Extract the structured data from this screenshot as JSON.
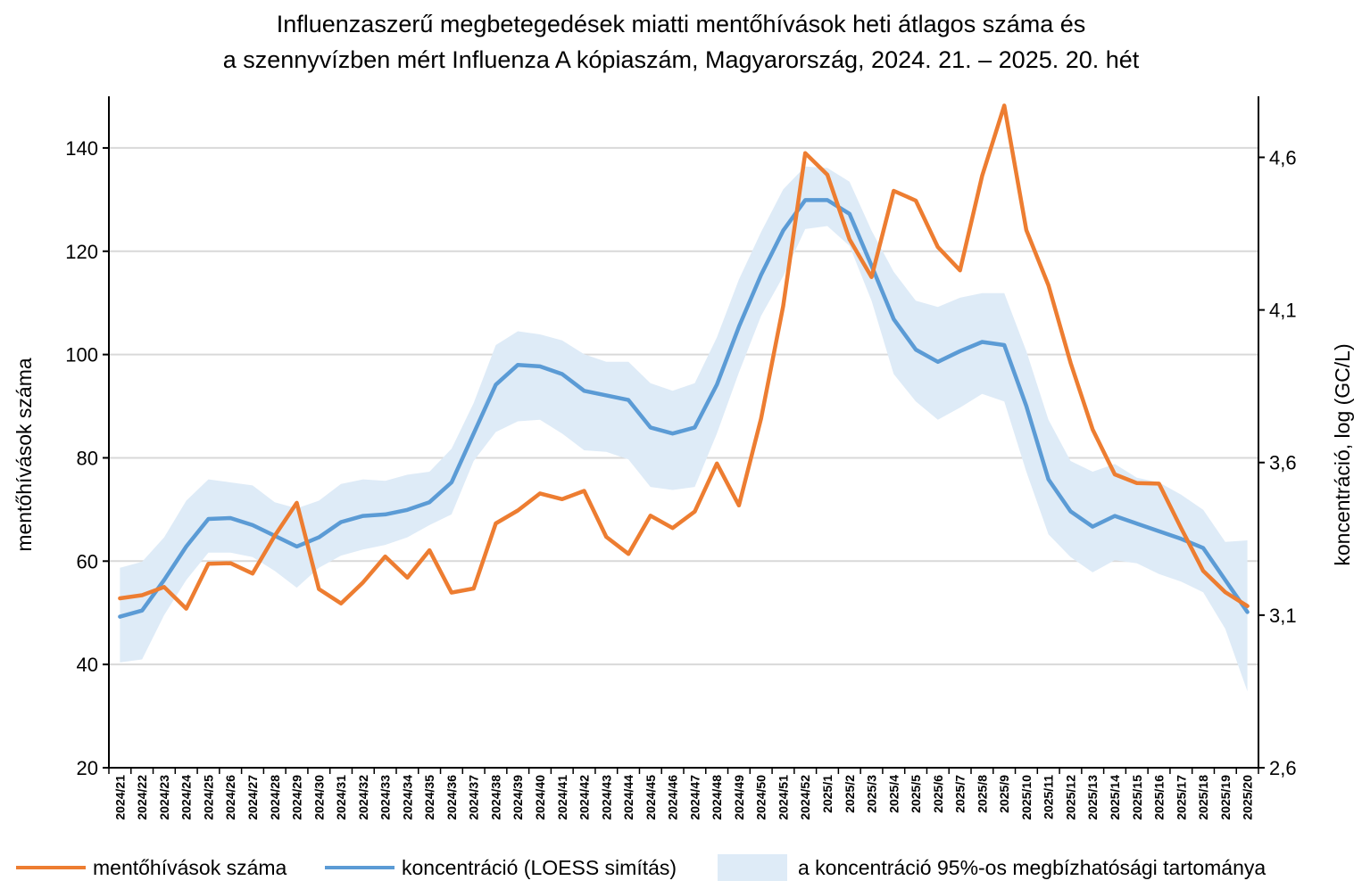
{
  "title": {
    "line1": "Influenzaszerű megbetegedések miatti mentőhívások heti átlagos száma és",
    "line2": "a szennyvízben mért Influenza A kópiaszám, Magyarország, 2024. 21. – 2025. 20. hét"
  },
  "colors": {
    "calls": "#ED7D31",
    "concentration": "#5B9BD5",
    "band": "#DEEBF7",
    "grid": "#D9D9D9",
    "axis": "#000000"
  },
  "chart_data": {
    "type": "line",
    "x": [
      "2024/21",
      "2024/22",
      "2024/23",
      "2024/24",
      "2024/25",
      "2024/26",
      "2024/27",
      "2024/28",
      "2024/29",
      "2024/30",
      "2024/31",
      "2024/32",
      "2024/33",
      "2024/34",
      "2024/35",
      "2024/36",
      "2024/37",
      "2024/38",
      "2024/39",
      "2024/40",
      "2024/41",
      "2024/42",
      "2024/43",
      "2024/44",
      "2024/45",
      "2024/46",
      "2024/47",
      "2024/48",
      "2024/49",
      "2024/50",
      "2024/51",
      "2024/52",
      "2025/1",
      "2025/2",
      "2025/3",
      "2025/4",
      "2025/5",
      "2025/6",
      "2025/7",
      "2025/8",
      "2025/9",
      "2025/10",
      "2025/11",
      "2025/12",
      "2025/13",
      "2025/14",
      "2025/15",
      "2025/16",
      "2025/17",
      "2025/18",
      "2025/19",
      "2025/20"
    ],
    "ylabel_left": "mentőhívások száma",
    "ylabel_right": "koncentráció, log (GC/L)",
    "ylim_left": [
      20,
      150
    ],
    "ylim_right": [
      2.6,
      4.8
    ],
    "yticks_left": [
      20,
      40,
      60,
      80,
      100,
      120,
      140
    ],
    "yticks_right": [
      "2,6",
      "3,1",
      "3,6",
      "4,1",
      "4,6"
    ],
    "grid": "horizontal",
    "legend_position": "bottom",
    "series": [
      {
        "name": "mentőhívások száma",
        "axis": "left",
        "color": "#ED7D31",
        "values": [
          52.8,
          53.4,
          55,
          50.8,
          59.5,
          59.6,
          57.6,
          64.9,
          71.3,
          54.6,
          51.8,
          55.9,
          60.9,
          56.8,
          62.1,
          53.9,
          54.7,
          67.3,
          69.8,
          73.1,
          72,
          73.6,
          64.7,
          61.4,
          68.8,
          66.4,
          69.6,
          78.9,
          70.8,
          87.6,
          109.4,
          139,
          134.8,
          122.3,
          115,
          131.7,
          129.8,
          120.8,
          116.3,
          134.6,
          148.2,
          124.1,
          113.4,
          98.4,
          85.5,
          76.8,
          75.1,
          75,
          66.4,
          58.1,
          54,
          51.3
        ]
      },
      {
        "name": "koncentráció (LOESS simítás)",
        "axis": "right",
        "color": "#5B9BD5",
        "values": [
          3.095,
          3.115,
          3.215,
          3.325,
          3.415,
          3.418,
          3.395,
          3.36,
          3.325,
          3.355,
          3.405,
          3.425,
          3.43,
          3.445,
          3.47,
          3.535,
          3.695,
          3.855,
          3.92,
          3.915,
          3.89,
          3.835,
          3.82,
          3.805,
          3.715,
          3.695,
          3.715,
          3.855,
          4.045,
          4.215,
          4.36,
          4.46,
          4.46,
          4.415,
          4.245,
          4.07,
          3.97,
          3.93,
          3.965,
          3.995,
          3.985,
          3.785,
          3.545,
          3.44,
          3.39,
          3.425,
          3.4,
          3.375,
          3.35,
          3.32,
          3.215,
          3.11
        ]
      },
      {
        "name": "a koncentráció 95%-os megbízhatósági tartománya",
        "axis": "right",
        "color": "#DEEBF7",
        "type": "area-band",
        "lower": [
          2.945,
          2.955,
          3.1,
          3.215,
          3.305,
          3.305,
          3.29,
          3.245,
          3.19,
          3.255,
          3.295,
          3.315,
          3.33,
          3.355,
          3.395,
          3.43,
          3.605,
          3.7,
          3.735,
          3.74,
          3.695,
          3.64,
          3.635,
          3.61,
          3.52,
          3.51,
          3.52,
          3.695,
          3.895,
          4.08,
          4.21,
          4.365,
          4.375,
          4.31,
          4.13,
          3.89,
          3.8,
          3.74,
          3.78,
          3.825,
          3.8,
          3.57,
          3.365,
          3.29,
          3.24,
          3.28,
          3.27,
          3.235,
          3.21,
          3.175,
          3.055,
          2.85
        ],
        "upper": [
          3.255,
          3.275,
          3.355,
          3.475,
          3.545,
          3.535,
          3.525,
          3.47,
          3.45,
          3.475,
          3.53,
          3.545,
          3.54,
          3.56,
          3.57,
          3.645,
          3.795,
          3.985,
          4.03,
          4.02,
          4.0,
          3.955,
          3.93,
          3.93,
          3.86,
          3.835,
          3.86,
          4.01,
          4.2,
          4.355,
          4.495,
          4.57,
          4.565,
          4.52,
          4.36,
          4.225,
          4.13,
          4.11,
          4.14,
          4.155,
          4.155,
          3.965,
          3.74,
          3.605,
          3.57,
          3.595,
          3.55,
          3.535,
          3.495,
          3.445,
          3.34,
          3.345
        ]
      }
    ]
  }
}
